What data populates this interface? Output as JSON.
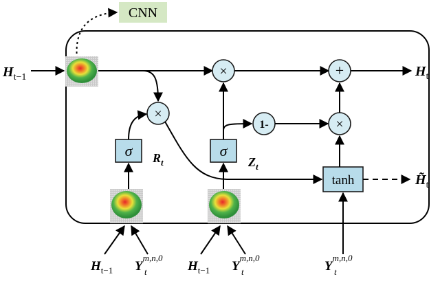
{
  "diagram": {
    "cnn_label": "CNN",
    "input_h": {
      "base": "H",
      "sub": "t−1"
    },
    "output_h": {
      "base": "H",
      "sub": "t"
    },
    "candidate_h": {
      "base": "H̃",
      "sub": "t"
    },
    "reset_gate": {
      "symbol": "σ",
      "label_base": "R",
      "label_sub": "t"
    },
    "update_gate": {
      "symbol": "σ",
      "label_base": "Z",
      "label_sub": "t"
    },
    "tanh_label": "tanh",
    "one_minus_label": "1-",
    "multiply_symbol": "×",
    "add_symbol": "+",
    "bottom_inputs": [
      {
        "base": "H",
        "sub": "t−1"
      },
      {
        "base": "Y",
        "sub": "t",
        "sup": "m,n,0"
      },
      {
        "base": "H",
        "sub": "t−1"
      },
      {
        "base": "Y",
        "sub": "t",
        "sup": "m,n,0"
      },
      {
        "base": "Y",
        "sub": "t",
        "sup": "m,n,0"
      }
    ],
    "colors": {
      "gate_fill": "#b8dcea",
      "node_fill": "#d6ecf3",
      "cnn_tag": "#d5e8c4"
    }
  }
}
